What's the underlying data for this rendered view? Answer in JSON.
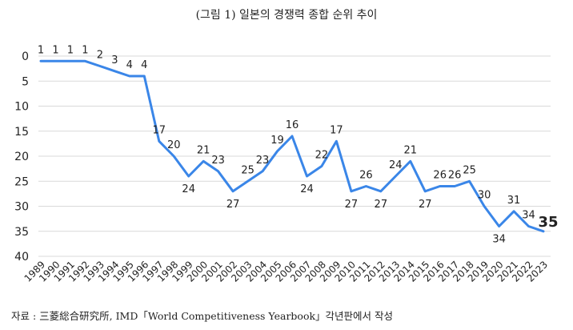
{
  "title": "(그림 1) 일본의 경쟁력 종합 순위 추이",
  "source": "자료 : 三菱総合研究所, IMD「World Competitiveness Yearbook」각년판에서 작성",
  "chart_data": {
    "type": "line",
    "title": "(그림 1) 일본의 경쟁력 종합 순위 추이",
    "xlabel": "",
    "ylabel": "",
    "y_inverted": true,
    "ylim": [
      0,
      40
    ],
    "yticks": [
      0,
      5,
      10,
      15,
      20,
      25,
      30,
      35,
      40
    ],
    "grid": true,
    "legend": "none",
    "series": [
      {
        "name": "일본 종합 순위",
        "color": "#3a86e8",
        "x": [
          1989,
          1990,
          1991,
          1992,
          1993,
          1994,
          1995,
          1996,
          1997,
          1998,
          1999,
          2000,
          2001,
          2002,
          2003,
          2004,
          2005,
          2006,
          2007,
          2008,
          2009,
          2010,
          2011,
          2012,
          2013,
          2014,
          2015,
          2016,
          2017,
          2018,
          2019,
          2020,
          2021,
          2022,
          2023
        ],
        "values": [
          1,
          1,
          1,
          1,
          2,
          3,
          4,
          4,
          17,
          20,
          24,
          21,
          23,
          27,
          25,
          23,
          19,
          16,
          24,
          22,
          17,
          27,
          26,
          27,
          24,
          21,
          27,
          26,
          26,
          25,
          30,
          34,
          31,
          34,
          35
        ],
        "labels": [
          "1",
          "1",
          "1",
          "1",
          "2",
          "3",
          "4",
          "4",
          "17",
          "20",
          "24",
          "21",
          "23",
          "27",
          "25",
          "23",
          "19",
          "16",
          "24",
          "22",
          "17",
          "27",
          "26",
          "27",
          "24",
          "21",
          "27",
          "26",
          "26",
          "25",
          "30",
          "34",
          "31",
          "34",
          "35"
        ]
      }
    ]
  }
}
